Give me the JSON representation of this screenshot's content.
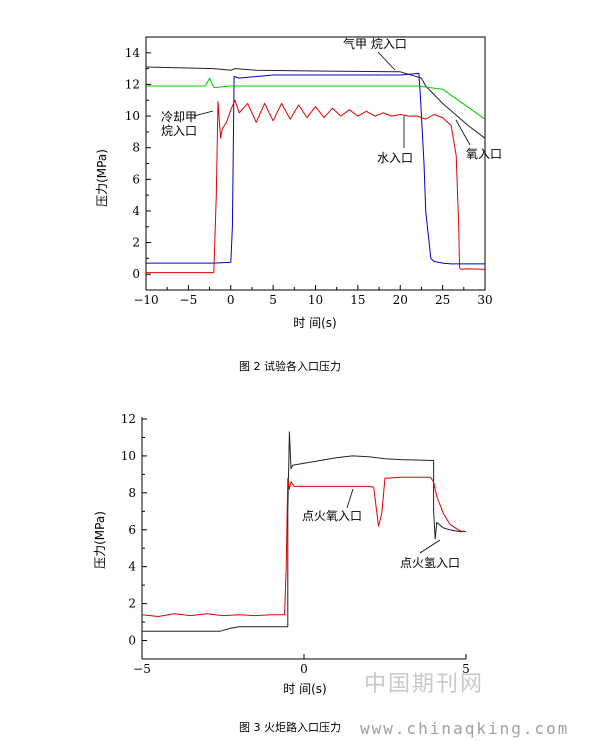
{
  "figures": [
    {
      "caption": "图 2 试验各入口压力",
      "ylabel": "压力(MPa)",
      "xlabel": "时 间(s)",
      "annotations": [
        {
          "text": "气甲 烷入口"
        },
        {
          "text": "冷却甲"
        },
        {
          "text": "烷入口"
        },
        {
          "text": "水入口"
        },
        {
          "text": "氧入口"
        }
      ]
    },
    {
      "caption": "图 3 火炬路入口压力",
      "ylabel": "压力(MPa)",
      "xlabel": "时 间(s)",
      "annotations": [
        {
          "text": "点火氧入口"
        },
        {
          "text": "点火氢入口"
        }
      ]
    }
  ],
  "watermark": {
    "site_cn": "中国期刊网",
    "site_url": "www.chinaqking.com"
  },
  "chart_data": [
    {
      "type": "line",
      "xlim": [
        -10,
        30
      ],
      "ylim": [
        -1,
        15
      ],
      "xticks": [
        -10,
        -5,
        0,
        5,
        10,
        15,
        20,
        25,
        30
      ],
      "yticks": [
        0,
        2,
        4,
        6,
        8,
        10,
        12,
        14
      ],
      "colors": {
        "methane_gas": "#222222",
        "cooling_methane": "#0000cc",
        "water": "#00cc00",
        "oxygen": "#e00000"
      },
      "series": [
        {
          "key": "methane_gas",
          "x": [
            -10,
            -2,
            0,
            0.5,
            3,
            10,
            20,
            22.5,
            23,
            25,
            28,
            30
          ],
          "y": [
            13.1,
            13.0,
            12.9,
            13.0,
            12.9,
            12.85,
            12.8,
            12.4,
            11.9,
            10.8,
            9.4,
            8.6
          ]
        },
        {
          "key": "cooling_methane",
          "x": [
            -10,
            -2,
            0,
            0.2,
            0.4,
            1,
            5,
            10,
            15,
            20,
            22.2,
            22.4,
            22.8,
            23,
            23.6,
            24,
            24.5,
            25,
            26,
            30
          ],
          "y": [
            0.7,
            0.7,
            0.75,
            3,
            12.5,
            12.4,
            12.6,
            12.6,
            12.6,
            12.6,
            12.7,
            11,
            7,
            4,
            1,
            0.8,
            0.75,
            0.7,
            0.65,
            0.65
          ]
        },
        {
          "key": "water",
          "x": [
            -10,
            -3,
            -2.5,
            -2,
            0,
            10,
            20,
            22,
            25,
            30
          ],
          "y": [
            11.9,
            11.9,
            12.4,
            11.8,
            11.9,
            11.9,
            11.9,
            11.9,
            11.7,
            9.8
          ]
        },
        {
          "key": "oxygen",
          "x": [
            -10,
            -2,
            -1.7,
            -1.5,
            -1.2,
            -1,
            -0.5,
            0,
            0.5,
            1,
            2,
            3,
            4,
            5,
            6,
            7,
            8,
            9,
            10,
            11,
            12,
            13,
            14,
            15,
            16,
            17,
            18,
            19,
            20,
            21,
            22,
            23,
            24,
            25,
            26,
            26.6,
            26.9,
            27,
            27.2,
            28,
            30
          ],
          "y": [
            0.1,
            0.1,
            5,
            10.9,
            8.6,
            9.2,
            9.6,
            10.4,
            11,
            10.2,
            10.8,
            9.6,
            10.8,
            9.7,
            10.8,
            9.8,
            10.7,
            9.9,
            10.6,
            9.9,
            10.5,
            10.0,
            10.4,
            10.0,
            10.3,
            10.0,
            10.2,
            10.0,
            10.1,
            10.0,
            10.0,
            9.8,
            10.1,
            9.9,
            9.4,
            7.5,
            3,
            0.4,
            0.3,
            0.35,
            0.3
          ]
        }
      ]
    },
    {
      "type": "line",
      "xlim": [
        -5,
        5
      ],
      "ylim": [
        -1,
        12
      ],
      "xticks": [
        -5,
        0,
        5
      ],
      "yticks": [
        0,
        2,
        4,
        6,
        8,
        10,
        12
      ],
      "colors": {
        "ignition_hydrogen": "#222222",
        "ignition_oxygen": "#e00000"
      },
      "series": [
        {
          "key": "ignition_hydrogen",
          "x": [
            -5,
            -2.6,
            -2.3,
            -2,
            -0.5,
            -0.5,
            -0.45,
            -0.4,
            -0.35,
            0,
            0.5,
            1,
            1.5,
            2,
            2.5,
            3,
            4,
            4,
            4.05,
            4.1,
            4.3,
            4.5,
            4.8,
            5
          ],
          "y": [
            0.5,
            0.5,
            0.65,
            0.75,
            0.75,
            7,
            11.3,
            9.3,
            9.5,
            9.6,
            9.75,
            9.9,
            10.0,
            9.95,
            9.85,
            9.8,
            9.75,
            7,
            5.5,
            6.4,
            6.1,
            6.0,
            5.9,
            5.9
          ]
        },
        {
          "key": "ignition_oxygen",
          "x": [
            -5,
            -4.5,
            -4,
            -3.5,
            -3,
            -2.5,
            -2,
            -1.5,
            -1,
            -0.6,
            -0.55,
            -0.5,
            -0.45,
            -0.4,
            -0.3,
            0,
            1,
            2,
            2.15,
            2.3,
            2.4,
            2.5,
            2.6,
            3,
            3.5,
            3.9,
            4.0,
            4.1,
            4.3,
            4.5,
            4.8,
            5
          ],
          "y": [
            1.4,
            1.3,
            1.45,
            1.35,
            1.45,
            1.35,
            1.4,
            1.35,
            1.4,
            1.4,
            4,
            8.8,
            8.2,
            8.6,
            8.35,
            8.35,
            8.35,
            8.35,
            8.3,
            6.2,
            6.9,
            8.8,
            8.8,
            8.85,
            8.85,
            8.85,
            8.6,
            7.8,
            6.9,
            6.3,
            5.95,
            5.9
          ]
        }
      ]
    }
  ]
}
